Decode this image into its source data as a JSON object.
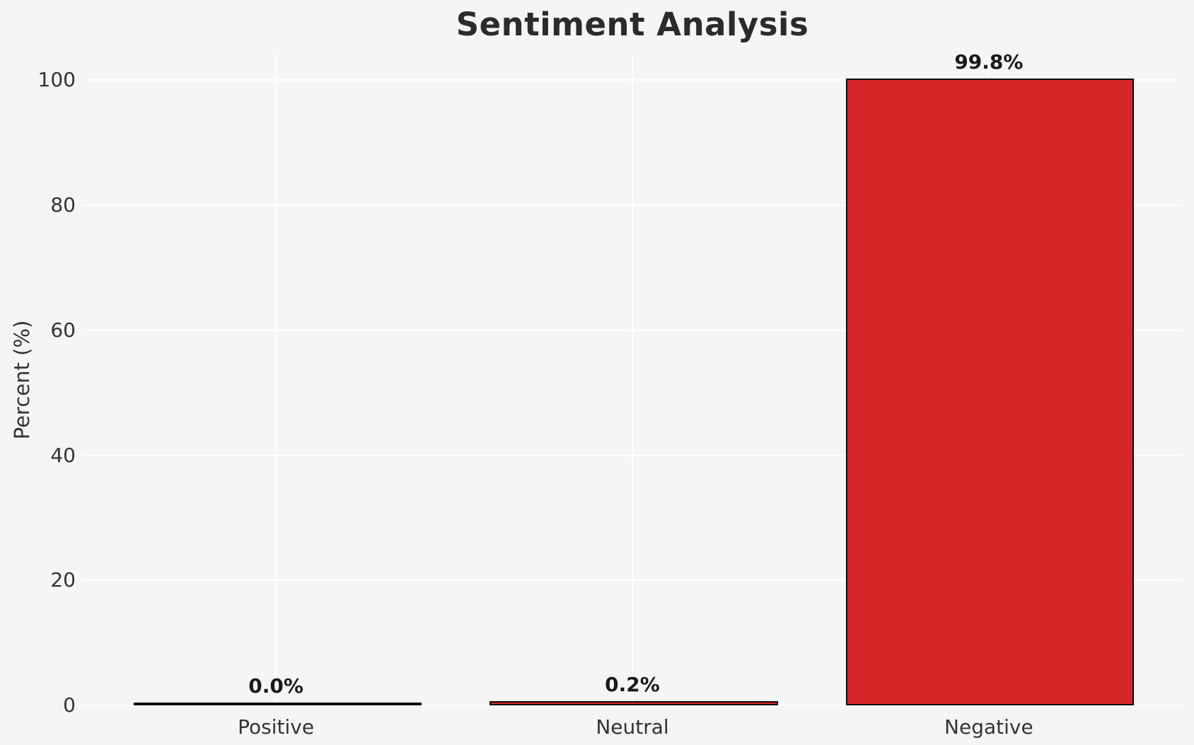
{
  "chart_data": {
    "type": "bar",
    "title": "Sentiment Analysis",
    "xlabel": "",
    "ylabel": "Percent (%)",
    "categories": [
      "Positive",
      "Neutral",
      "Negative"
    ],
    "values": [
      0.0,
      0.2,
      99.8
    ],
    "value_labels": [
      "0.0%",
      "0.2%",
      "99.8%"
    ],
    "yticks": [
      0,
      20,
      40,
      60,
      80,
      100
    ],
    "ytick_labels": [
      "0",
      "20",
      "40",
      "60",
      "80",
      "100"
    ],
    "ylim": [
      0,
      104
    ],
    "grid": true,
    "legend": false,
    "colors": {
      "bar_fill": "#d62728",
      "bar_edge": "#0d0d0d",
      "background": "#f5f5f6",
      "gridline": "#ffffff",
      "title_text": "#2b2b2b",
      "tick_text": "#333333"
    }
  }
}
